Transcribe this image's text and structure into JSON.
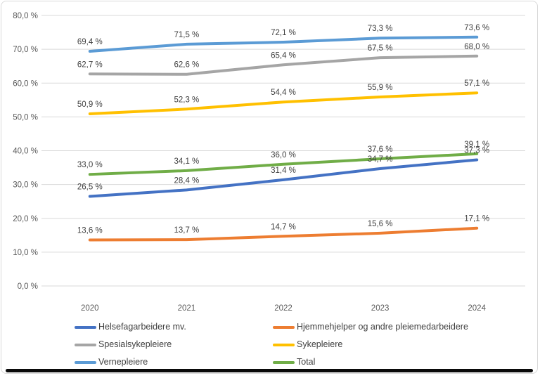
{
  "chart_data": {
    "type": "line",
    "title": "",
    "categories": [
      "2020",
      "2021",
      "2022",
      "2023",
      "2024"
    ],
    "series": [
      {
        "name": "Helsefagarbeidere mv.",
        "color": "#4472C4",
        "values": [
          26.5,
          28.4,
          31.4,
          34.7,
          37.3
        ],
        "labels": [
          "26,5 %",
          "28,4 %",
          "31,4 %",
          "34,7 %",
          "37,3 %"
        ]
      },
      {
        "name": "Hjemmehjelper og andre pleiemedarbeidere",
        "color": "#ED7D31",
        "values": [
          13.6,
          13.7,
          14.7,
          15.6,
          17.1
        ],
        "labels": [
          "13,6 %",
          "13,7 %",
          "14,7 %",
          "15,6 %",
          "17,1 %"
        ]
      },
      {
        "name": "Spesialsykepleiere",
        "color": "#A5A5A5",
        "values": [
          62.7,
          62.6,
          65.4,
          67.5,
          68.0
        ],
        "labels": [
          "62,7 %",
          "62,6 %",
          "65,4 %",
          "67,5 %",
          "68,0 %"
        ]
      },
      {
        "name": "Sykepleiere",
        "color": "#FFC000",
        "values": [
          50.9,
          52.3,
          54.4,
          55.9,
          57.1
        ],
        "labels": [
          "50,9 %",
          "52,3 %",
          "54,4 %",
          "55,9 %",
          "57,1 %"
        ]
      },
      {
        "name": "Vernepleiere",
        "color": "#5B9BD5",
        "values": [
          69.4,
          71.5,
          72.1,
          73.3,
          73.6
        ],
        "labels": [
          "69,4 %",
          "71,5 %",
          "72,1 %",
          "73,3 %",
          "73,6 %"
        ]
      },
      {
        "name": "Total",
        "color": "#70AD47",
        "values": [
          33.0,
          34.1,
          36.0,
          37.6,
          39.1
        ],
        "labels": [
          "33,0 %",
          "34,1 %",
          "36,0 %",
          "37,6 %",
          "39,1 %"
        ]
      }
    ],
    "y_axis": {
      "min": 0,
      "max": 80,
      "step": 10,
      "tick_labels": [
        "80,0 %",
        "70,0 %",
        "60,0 %",
        "50,0 %",
        "40,0 %",
        "30,0 %",
        "20,0 %",
        "10,0 %",
        "0,0 %"
      ]
    },
    "xlabel": "",
    "ylabel": "",
    "grid": true,
    "legend_position": "bottom",
    "legend_columns": 2,
    "styles": {
      "grid_color": "#d9d9d9",
      "axis_text_color": "#595959",
      "data_label_color": "#404040"
    }
  }
}
